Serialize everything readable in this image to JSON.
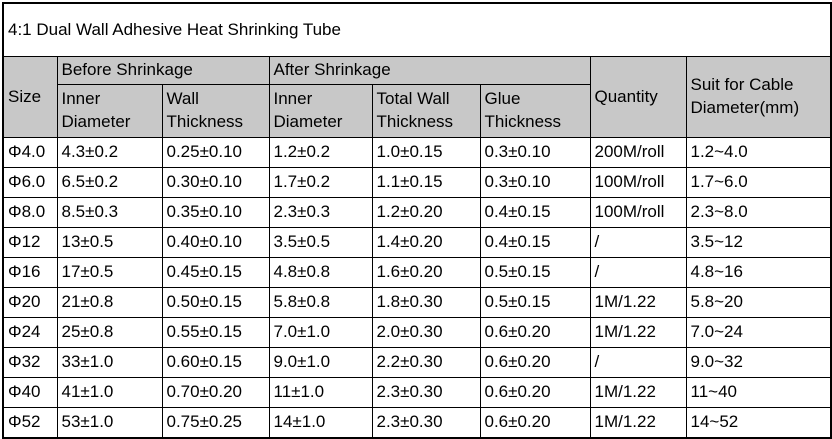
{
  "title": "4:1 Dual Wall Adhesive Heat Shrinking Tube",
  "colors": {
    "header_bg": "#c8c8c8",
    "border": "#000000",
    "background": "#ffffff",
    "text": "#000000"
  },
  "table": {
    "headers": {
      "size": "Size",
      "before_group": "Before Shrinkage",
      "after_group": "After Shrinkage",
      "before_inner": "Inner Diameter",
      "before_wall": "Wall Thickness",
      "after_inner": "Inner Diameter",
      "after_total_wall": "Total Wall Thickness",
      "after_glue": "Glue Thickness",
      "quantity": "Quantity",
      "suit": "Suit for Cable Diameter(mm)"
    },
    "rows": [
      [
        "Φ4.0",
        "4.3±0.2",
        "0.25±0.10",
        "1.2±0.2",
        "1.0±0.15",
        "0.3±0.10",
        "200M/roll",
        "1.2~4.0"
      ],
      [
        "Φ6.0",
        "6.5±0.2",
        "0.30±0.10",
        "1.7±0.2",
        "1.1±0.15",
        "0.3±0.10",
        "100M/roll",
        "1.7~6.0"
      ],
      [
        "Φ8.0",
        "8.5±0.3",
        "0.35±0.10",
        "2.3±0.3",
        "1.2±0.20",
        "0.4±0.15",
        "100M/roll",
        "2.3~8.0"
      ],
      [
        "Φ12",
        "13±0.5",
        "0.40±0.10",
        "3.5±0.5",
        "1.4±0.20",
        "0.4±0.15",
        "/",
        "3.5~12"
      ],
      [
        "Φ16",
        "17±0.5",
        "0.45±0.15",
        "4.8±0.8",
        "1.6±0.20",
        "0.5±0.15",
        "/",
        "4.8~16"
      ],
      [
        "Φ20",
        "21±0.8",
        "0.50±0.15",
        "5.8±0.8",
        "1.8±0.30",
        "0.5±0.15",
        "1M/1.22",
        "5.8~20"
      ],
      [
        "Φ24",
        "25±0.8",
        "0.55±0.15",
        "7.0±1.0",
        "2.0±0.30",
        "0.6±0.20",
        "1M/1.22",
        "7.0~24"
      ],
      [
        "Φ32",
        "33±1.0",
        "0.60±0.15",
        "9.0±1.0",
        "2.2±0.30",
        "0.6±0.20",
        "/",
        "9.0~32"
      ],
      [
        "Φ40",
        "41±1.0",
        "0.70±0.20",
        "11±1.0",
        "2.3±0.30",
        "0.6±0.20",
        "1M/1.22",
        "11~40"
      ],
      [
        "Φ52",
        "53±1.0",
        "0.75±0.25",
        "14±1.0",
        "2.3±0.30",
        "0.6±0.20",
        "1M/1.22",
        "14~52"
      ]
    ]
  }
}
